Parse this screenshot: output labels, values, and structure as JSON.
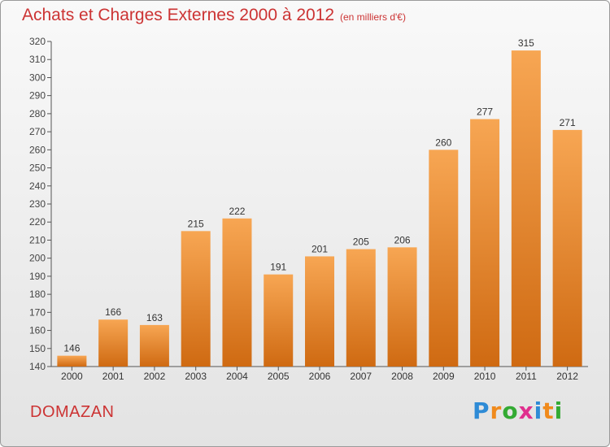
{
  "header": {
    "title": "Achats et Charges Externes 2000 à 2012",
    "subtitle": "(en milliers d'€)"
  },
  "footer": {
    "commune": "DOMAZAN",
    "logo_text": "Proxiti",
    "logo_colors": [
      "#2e8bd6",
      "#f08a1c",
      "#33aa33",
      "#e02f8e",
      "#2e8bd6",
      "#f08a1c",
      "#33aa33"
    ]
  },
  "colors": {
    "bar_light": "#f7a653",
    "bar_dark": "#cf6a12",
    "accent": "#cc3333",
    "axis": "#555555"
  },
  "chart_data": {
    "type": "bar",
    "title": "Achats et Charges Externes 2000 à 2012",
    "subtitle": "(en milliers d'€)",
    "categories": [
      "2000",
      "2001",
      "2002",
      "2003",
      "2004",
      "2005",
      "2006",
      "2007",
      "2008",
      "2009",
      "2010",
      "2011",
      "2012"
    ],
    "values": [
      146,
      166,
      163,
      215,
      222,
      191,
      201,
      205,
      206,
      260,
      277,
      315,
      271
    ],
    "ylim": [
      140,
      320
    ],
    "ytick_step": 10,
    "grid": false,
    "legend": "none",
    "data_labels": true
  }
}
